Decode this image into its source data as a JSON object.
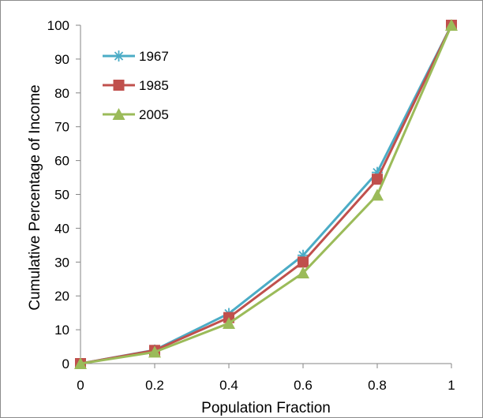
{
  "chart_data": {
    "type": "line",
    "x": [
      0,
      0.2,
      0.4,
      0.6,
      0.8,
      1
    ],
    "x_tick_labels": [
      "0",
      "0.2",
      "0.4",
      "0.6",
      "0.8",
      "1"
    ],
    "y_tick_labels": [
      "0",
      "10",
      "20",
      "30",
      "40",
      "50",
      "60",
      "70",
      "80",
      "90",
      "100"
    ],
    "xlim": [
      0,
      1
    ],
    "ylim": [
      0,
      100
    ],
    "xlabel": "Population Fraction",
    "ylabel": "Cumulative Percentage of Income",
    "grid": false,
    "legend_position": "top-left",
    "series": [
      {
        "name": "1967",
        "values": [
          0,
          4,
          14.8,
          32,
          56.5,
          100
        ],
        "color": "#4bacc6",
        "marker": "asterisk"
      },
      {
        "name": "1985",
        "values": [
          0,
          3.9,
          13.6,
          30,
          54.5,
          100
        ],
        "color": "#c0504d",
        "marker": "square"
      },
      {
        "name": "2005",
        "values": [
          0,
          3.4,
          11.9,
          26.8,
          49.8,
          100
        ],
        "color": "#9bbb59",
        "marker": "triangle"
      }
    ]
  }
}
